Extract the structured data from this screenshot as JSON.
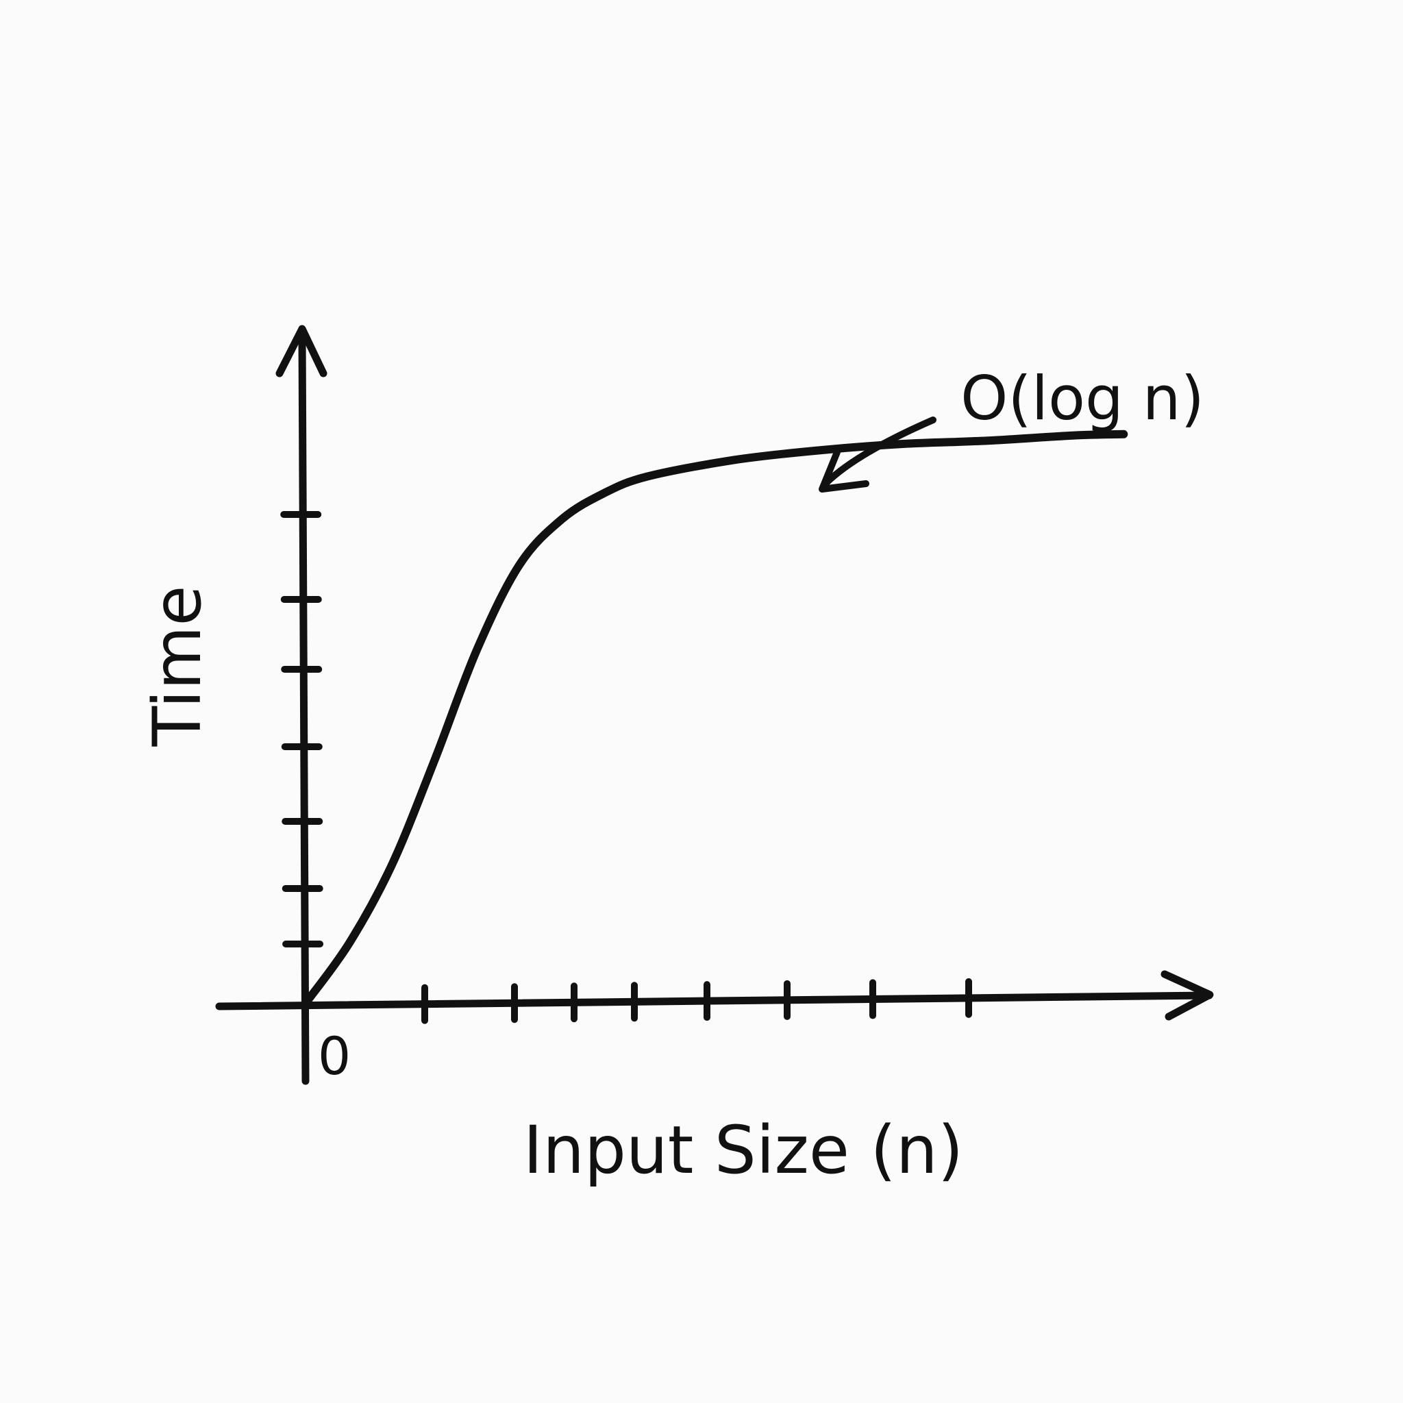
{
  "colors": {
    "ink": "#111111",
    "paper": "#fbfbfb"
  },
  "chart_data": {
    "type": "line",
    "title": "",
    "xlabel": "Input Size (n)",
    "ylabel": "Time",
    "origin_label": "0",
    "x_scale": "linear",
    "y_scale": "linear",
    "grid": false,
    "legend": "none",
    "x_ticks_count": 8,
    "y_ticks_count": 7,
    "xlim": [
      0,
      10
    ],
    "ylim": [
      0,
      10
    ],
    "series": [
      {
        "name": "O(log n)",
        "x": [
          0,
          0.5,
          1.0,
          1.5,
          2.0,
          2.5,
          3.0,
          3.5,
          4.0,
          5.0,
          6.0,
          7.0,
          8.0,
          9.0,
          9.6
        ],
        "y": [
          0,
          0.9,
          2.1,
          3.7,
          5.4,
          6.7,
          7.4,
          7.8,
          8.05,
          8.3,
          8.45,
          8.55,
          8.6,
          8.68,
          8.7
        ]
      }
    ],
    "annotations": [
      {
        "text": "O(log n)",
        "points_to": "curve"
      }
    ]
  }
}
